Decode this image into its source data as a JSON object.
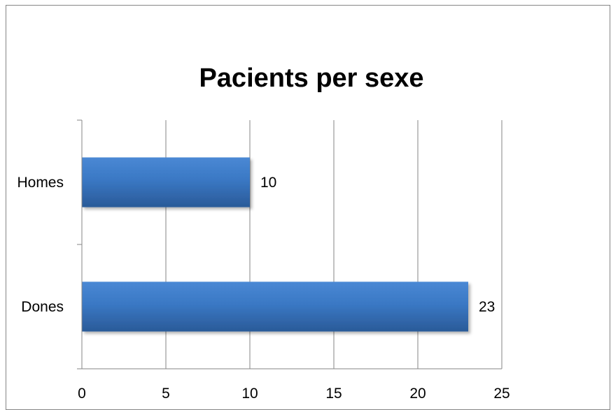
{
  "chart_data": {
    "type": "bar",
    "orientation": "horizontal",
    "title": "Pacients per sexe",
    "categories": [
      "Homes",
      "Dones"
    ],
    "values": [
      10,
      23
    ],
    "data_labels": [
      "10",
      "23"
    ],
    "xlabel": "",
    "ylabel": "",
    "xlim": [
      0,
      25
    ],
    "x_ticks": [
      0,
      5,
      10,
      15,
      20,
      25
    ],
    "x_tick_labels": [
      "0",
      "5",
      "10",
      "15",
      "20",
      "25"
    ],
    "grid": "vertical",
    "legend": "none",
    "bar_color": "#3a78c4",
    "bar_color_dark": "#2a5a98"
  }
}
